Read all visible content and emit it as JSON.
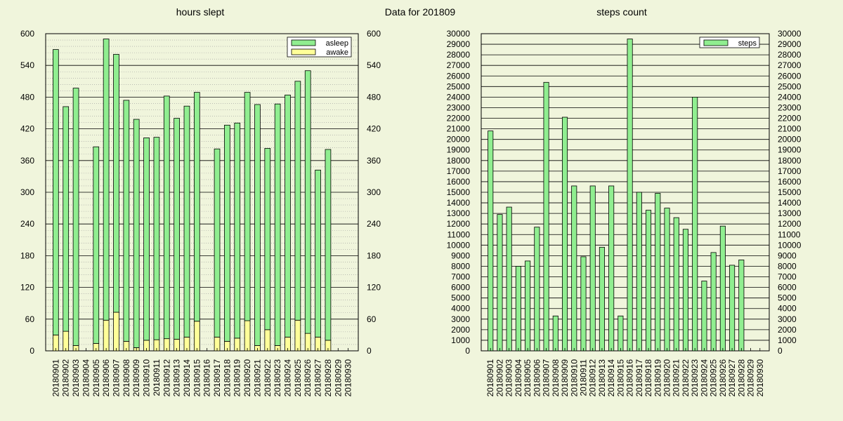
{
  "page_title": "Data for 201809",
  "colors": {
    "background": "#f0f5dc",
    "asleep": "#90ee90",
    "awake": "#ffff99",
    "steps": "#90ee90",
    "bar_stroke": "#000000",
    "grid": "#000000"
  },
  "chart_data": [
    {
      "type": "bar",
      "stacked": true,
      "title": "hours slept",
      "categories": [
        "20180901",
        "20180902",
        "20180903",
        "20180904",
        "20180905",
        "20180906",
        "20180907",
        "20180908",
        "20180909",
        "20180910",
        "20180911",
        "20180912",
        "20180913",
        "20180914",
        "20180915",
        "20180916",
        "20180917",
        "20180918",
        "20180919",
        "20180920",
        "20180921",
        "20180922",
        "20180923",
        "20180924",
        "20180925",
        "20180926",
        "20180927",
        "20180928",
        "20180929",
        "20180930"
      ],
      "series": [
        {
          "name": "awake",
          "color": "#ffff99",
          "values": [
            30,
            37,
            10,
            0,
            14,
            58,
            73,
            18,
            6,
            20,
            21,
            23,
            22,
            26,
            56,
            0,
            26,
            18,
            24,
            57,
            10,
            40,
            10,
            26,
            58,
            33,
            26,
            20,
            0,
            0
          ]
        },
        {
          "name": "asleep",
          "color": "#90ee90",
          "values": [
            540,
            425,
            487,
            0,
            372,
            532,
            488,
            456,
            432,
            383,
            383,
            459,
            418,
            437,
            433,
            0,
            356,
            409,
            407,
            432,
            456,
            343,
            457,
            458,
            452,
            497,
            316,
            361,
            0,
            0
          ]
        }
      ],
      "ylim": [
        0,
        600
      ],
      "yticks": [
        0,
        60,
        120,
        180,
        240,
        300,
        360,
        420,
        480,
        540,
        600
      ],
      "right_axis": true,
      "grid": true,
      "legend": "top-right"
    },
    {
      "type": "bar",
      "title": "steps count",
      "categories": [
        "20180901",
        "20180902",
        "20180903",
        "20180904",
        "20180905",
        "20180906",
        "20180907",
        "20180908",
        "20180909",
        "20180910",
        "20180911",
        "20180912",
        "20180913",
        "20180914",
        "20180915",
        "20180916",
        "20180917",
        "20180918",
        "20180919",
        "20180920",
        "20180921",
        "20180922",
        "20180923",
        "20180924",
        "20180925",
        "20180926",
        "20180927",
        "20180928",
        "20180929",
        "20180930"
      ],
      "series": [
        {
          "name": "steps",
          "color": "#90ee90",
          "values": [
            20800,
            12900,
            13600,
            8000,
            8500,
            11700,
            25400,
            3300,
            22100,
            15600,
            8900,
            15600,
            9800,
            15600,
            3300,
            29500,
            15000,
            13300,
            14900,
            13500,
            12600,
            11500,
            24000,
            6600,
            9300,
            11800,
            8100,
            8600,
            0,
            0
          ]
        }
      ],
      "ylim": [
        0,
        30000
      ],
      "yticks": [
        0,
        1000,
        2000,
        3000,
        4000,
        5000,
        6000,
        7000,
        8000,
        9000,
        10000,
        11000,
        12000,
        13000,
        14000,
        15000,
        16000,
        17000,
        18000,
        19000,
        20000,
        21000,
        22000,
        23000,
        24000,
        25000,
        26000,
        27000,
        28000,
        29000,
        30000
      ],
      "right_axis": true,
      "grid": true,
      "legend": "top-right"
    }
  ]
}
